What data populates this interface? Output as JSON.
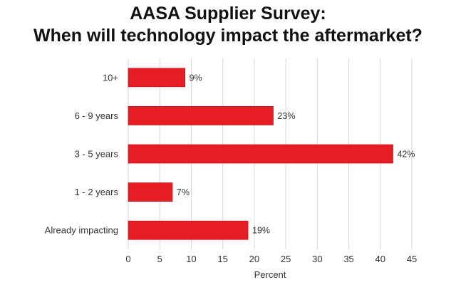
{
  "chart_data": {
    "type": "bar",
    "orientation": "horizontal",
    "title_line1": "AASA Supplier Survey:",
    "title_line2": "When will technology impact the aftermarket?",
    "categories": [
      "10+",
      "6 - 9 years",
      "3 - 5 years",
      "1 - 2 years",
      "Already impacting"
    ],
    "values": [
      9,
      23,
      42,
      7,
      19
    ],
    "data_labels": [
      "9%",
      "23%",
      "42%",
      "7%",
      "19%"
    ],
    "xlabel": "Percent",
    "ylabel": "",
    "xlim": [
      0,
      45
    ],
    "xticks": [
      "0",
      "5",
      "10",
      "15",
      "20",
      "25",
      "30",
      "35",
      "40",
      "45"
    ],
    "grid": "vertical",
    "legend": "none"
  },
  "colors": {
    "bar": "#e51e25",
    "bar_edge": "#c0141a",
    "grid": "#d6d6d6",
    "text": "#333333"
  }
}
